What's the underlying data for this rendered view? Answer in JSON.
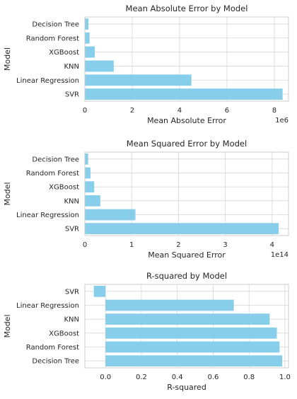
{
  "chart_data": [
    {
      "type": "bar",
      "orientation": "horizontal",
      "title": "Mean Absolute Error by Model",
      "xlabel": "Mean Absolute Error",
      "ylabel": "Model",
      "offset_text": "1e6",
      "categories": [
        "SVR",
        "Linear Regression",
        "KNN",
        "XGBoost",
        "Random Forest",
        "Decision Tree"
      ],
      "values": [
        8.35,
        4.5,
        1.22,
        0.42,
        0.2,
        0.15
      ],
      "xlim": [
        0,
        8.6
      ],
      "xticks": [
        "0",
        "2",
        "4",
        "6",
        "8"
      ],
      "grid": true,
      "color": "#87CEEB"
    },
    {
      "type": "bar",
      "orientation": "horizontal",
      "title": "Mean Squared Error by Model",
      "xlabel": "Mean Squared Error",
      "ylabel": "Model",
      "offset_text": "1e14",
      "categories": [
        "SVR",
        "Linear Regression",
        "KNN",
        "XGBoost",
        "Random Forest",
        "Decision Tree"
      ],
      "values": [
        4.14,
        1.08,
        0.33,
        0.2,
        0.12,
        0.07
      ],
      "xlim": [
        0,
        4.35
      ],
      "xticks": [
        "0",
        "1",
        "2",
        "3",
        "4"
      ],
      "grid": true,
      "color": "#87CEEB"
    },
    {
      "type": "bar",
      "orientation": "horizontal",
      "title": "R-squared by Model",
      "xlabel": "R-squared",
      "ylabel": "Model",
      "offset_text": "",
      "categories": [
        "Decision Tree",
        "Random Forest",
        "XGBoost",
        "KNN",
        "Linear Regression",
        "SVR"
      ],
      "values": [
        0.985,
        0.97,
        0.955,
        0.915,
        0.715,
        -0.065
      ],
      "xlim": [
        -0.115,
        1.02
      ],
      "xticks": [
        "0.0",
        "0.2",
        "0.4",
        "0.6",
        "0.8",
        "1.0"
      ],
      "grid": true,
      "color": "#87CEEB"
    }
  ]
}
